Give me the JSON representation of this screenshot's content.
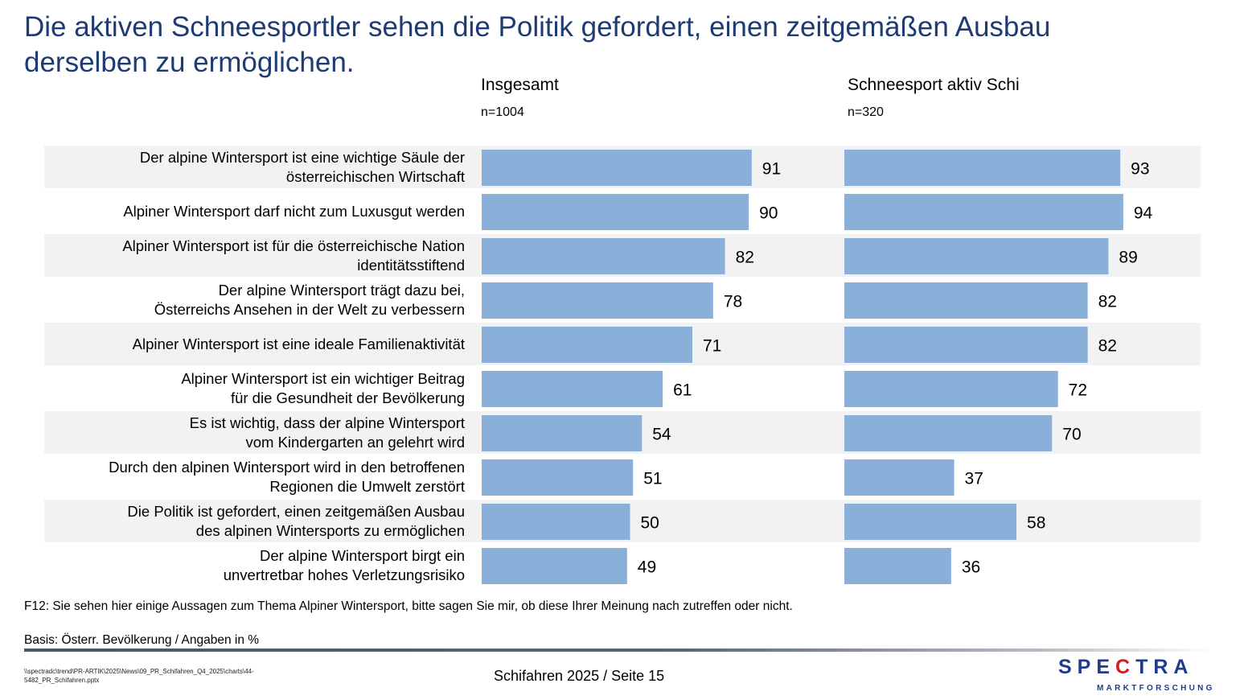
{
  "title": "Die aktiven Schneesportler sehen die Politik gefordert, einen zeitgemäßen Ausbau derselben zu ermöglichen.",
  "colors": {
    "title": "#1f3b73",
    "bar": "#8aafd8",
    "band": "#f2f2f2",
    "logo_blue": "#1f3b8c",
    "logo_red": "#d21f26"
  },
  "chart_data": {
    "type": "bar",
    "orientation": "horizontal",
    "title": "Die aktiven Schneesportler sehen die Politik gefordert, einen zeitgemäßen Ausbau derselben zu ermöglichen.",
    "unit": "%",
    "xlim": [
      0,
      100
    ],
    "grid": false,
    "categories": [
      "Der alpine Wintersport ist eine wichtige Säule der\nösterreichischen Wirtschaft",
      "Alpiner Wintersport darf nicht zum Luxusgut werden",
      "Alpiner Wintersport ist für die österreichische Nation\nidentitätsstiftend",
      "Der alpine Wintersport trägt dazu bei,\nÖsterreichs Ansehen in der Welt zu verbessern",
      "Alpiner Wintersport ist eine ideale Familienaktivität",
      "Alpiner Wintersport ist ein wichtiger Beitrag\nfür die Gesundheit der Bevölkerung",
      "Es ist wichtig, dass der alpine Wintersport\nvom Kindergarten an gelehrt wird",
      "Durch den alpinen Wintersport wird in den betroffenen\nRegionen die Umwelt zerstört",
      "Die Politik ist gefordert, einen zeitgemäßen Ausbau\ndes alpinen Wintersports zu ermöglichen",
      "Der alpine Wintersport birgt ein\nunvertretbar hohes Verletzungsrisiko"
    ],
    "series": [
      {
        "name": "Insgesamt",
        "n": "n=1004",
        "values": [
          91,
          90,
          82,
          78,
          71,
          61,
          54,
          51,
          50,
          49
        ]
      },
      {
        "name": "Schneesport aktiv Schi",
        "n": "n=320",
        "values": [
          93,
          94,
          89,
          82,
          82,
          72,
          70,
          37,
          58,
          36
        ]
      }
    ]
  },
  "footer": {
    "question": "F12: Sie sehen hier einige Aussagen zum Thema Alpiner Wintersport, bitte sagen Sie mir, ob diese Ihrer Meinung nach zutreffen oder nicht.",
    "basis": "Basis: Österr. Bevölkerung / Angaben in %",
    "file_path": "\\\\spectradc\\trend\\PR-ARTIK\\2025\\News\\09_PR_Schifahren_Q4_2025\\charts\\44-5482_PR_Schifahren.pptx",
    "page": "Schifahren 2025  /  Seite 15"
  },
  "logo": {
    "word_pre": "SPE",
    "word_c": "C",
    "word_post": "TRA",
    "sub": "MARKTFORSCHUNG"
  }
}
